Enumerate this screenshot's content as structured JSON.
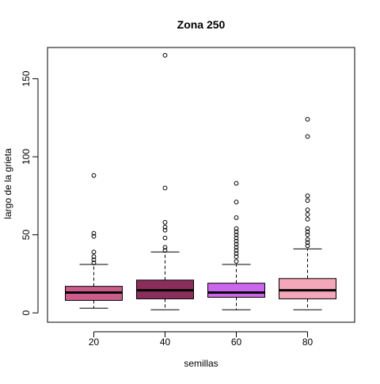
{
  "chart_data": {
    "type": "boxplot",
    "title": "Zona 250",
    "xlabel": "semillas",
    "ylabel": "largo de la grieta",
    "ylim": [
      -6,
      170
    ],
    "yticks": [
      0,
      50,
      100,
      150
    ],
    "grid": false,
    "legend": "none",
    "categories": [
      "20",
      "40",
      "60",
      "80"
    ],
    "boxes": [
      {
        "category": "20",
        "color": "#cc5c8c",
        "whisker_low": 3,
        "q1": 8,
        "median": 13,
        "q3": 17,
        "whisker_high": 31,
        "outliers": [
          32,
          34,
          36,
          39,
          49,
          51,
          88
        ]
      },
      {
        "category": "40",
        "color": "#8b2e5c",
        "whisker_low": 2,
        "q1": 9,
        "median": 14.5,
        "q3": 21,
        "whisker_high": 39,
        "outliers": [
          40,
          42,
          48,
          53,
          55,
          58,
          80,
          165
        ]
      },
      {
        "category": "60",
        "color": "#cc66ee",
        "whisker_low": 2,
        "q1": 10,
        "median": 13,
        "q3": 19,
        "whisker_high": 31,
        "outliers": [
          33,
          36,
          38,
          40,
          42,
          44,
          46,
          48,
          50,
          52,
          54,
          61,
          71,
          83
        ]
      },
      {
        "category": "80",
        "color": "#f4a7b9",
        "whisker_low": 2,
        "q1": 9,
        "median": 14.5,
        "q3": 22,
        "whisker_high": 41,
        "outliers": [
          43,
          45,
          47,
          50,
          52,
          54,
          60,
          63,
          66,
          72,
          75,
          113,
          124
        ]
      }
    ]
  }
}
